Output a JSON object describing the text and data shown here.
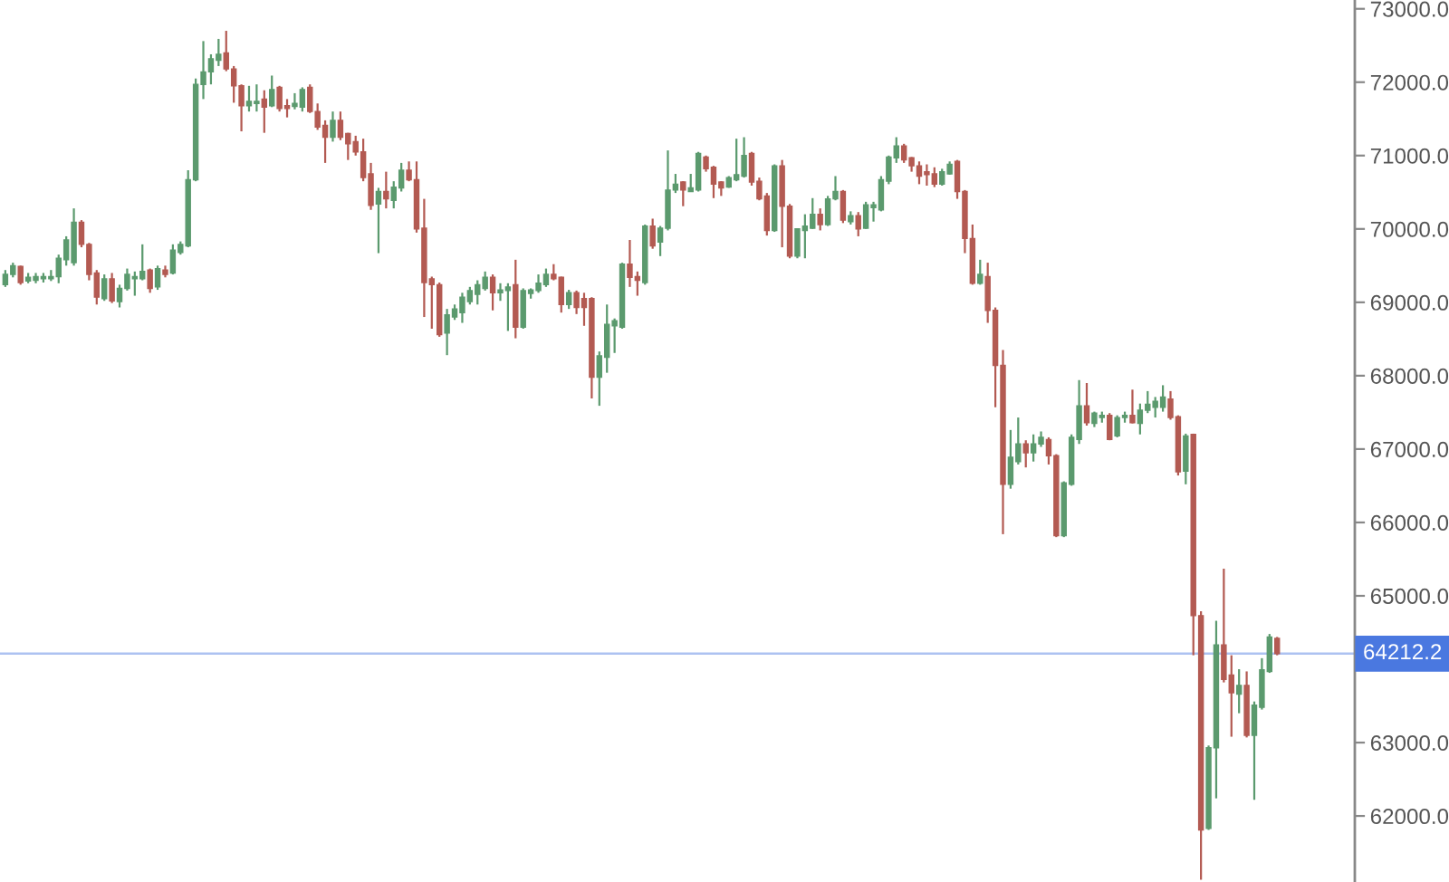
{
  "chart_data": {
    "type": "candlestick",
    "categories": [
      null,
      null,
      null,
      null,
      null,
      null,
      null,
      null,
      null,
      null,
      null,
      null,
      null,
      null,
      null,
      null,
      null,
      null,
      null,
      null,
      null,
      null,
      null,
      null,
      null,
      null,
      null,
      null,
      null,
      null,
      null,
      null,
      null,
      null,
      null,
      null,
      null,
      null,
      null,
      null,
      null,
      null,
      null,
      null,
      null,
      null,
      null,
      null,
      null,
      null,
      null,
      null,
      null,
      null,
      null,
      null,
      null,
      null,
      null,
      null,
      null,
      null,
      null,
      null,
      null,
      null,
      null,
      null,
      null,
      null,
      null,
      null,
      null,
      null,
      null,
      null,
      null,
      null,
      null,
      null,
      null,
      null,
      null,
      null,
      null,
      null,
      null,
      null,
      null,
      null,
      null,
      null,
      null,
      null,
      null,
      null,
      null,
      null,
      null,
      null,
      null,
      null,
      null,
      null,
      null,
      null,
      null,
      null,
      null,
      null,
      null,
      null,
      null,
      null,
      null,
      null,
      null,
      null,
      null,
      null,
      null,
      null,
      null,
      null,
      null,
      null,
      null,
      null,
      null,
      null,
      null,
      null,
      null,
      null,
      null,
      null,
      null,
      null,
      null,
      null,
      null,
      null,
      null,
      null,
      null,
      null,
      null,
      null,
      null,
      null,
      null,
      null,
      null,
      null,
      null,
      null,
      null,
      null,
      null,
      null,
      null,
      null,
      null,
      null,
      null,
      null,
      null,
      null
    ],
    "ohlc": [
      [
        69240,
        69440,
        69210,
        69380
      ],
      [
        69380,
        69540,
        69340,
        69500
      ],
      [
        69490,
        69500,
        69240,
        69270
      ],
      [
        69290,
        69400,
        69260,
        69340
      ],
      [
        69300,
        69400,
        69260,
        69350
      ],
      [
        69320,
        69400,
        69270,
        69350
      ],
      [
        69320,
        69440,
        69290,
        69350
      ],
      [
        69350,
        69650,
        69260,
        69600
      ],
      [
        69580,
        69900,
        69500,
        69850
      ],
      [
        69540,
        70280,
        69500,
        70090
      ],
      [
        70090,
        70120,
        69750,
        69790
      ],
      [
        69790,
        69810,
        69300,
        69380
      ],
      [
        69400,
        69440,
        68970,
        69070
      ],
      [
        69050,
        69380,
        69020,
        69320
      ],
      [
        69320,
        69400,
        68990,
        69020
      ],
      [
        69010,
        69240,
        68930,
        69190
      ],
      [
        69190,
        69460,
        69160,
        69380
      ],
      [
        69320,
        69420,
        69090,
        69350
      ],
      [
        69320,
        69790,
        69300,
        69420
      ],
      [
        69440,
        69460,
        69130,
        69190
      ],
      [
        69210,
        69500,
        69170,
        69460
      ],
      [
        69440,
        69500,
        69340,
        69380
      ],
      [
        69400,
        69790,
        69380,
        69710
      ],
      [
        69680,
        69830,
        69650,
        69790
      ],
      [
        69770,
        70800,
        69750,
        70670
      ],
      [
        70670,
        72050,
        70650,
        71970
      ],
      [
        71970,
        72560,
        71770,
        72140
      ],
      [
        72140,
        72380,
        71970,
        72320
      ],
      [
        72300,
        72590,
        72220,
        72380
      ],
      [
        72400,
        72700,
        72150,
        72180
      ],
      [
        72180,
        72220,
        71720,
        71950
      ],
      [
        71950,
        71970,
        71330,
        71680
      ],
      [
        71680,
        71950,
        71600,
        71740
      ],
      [
        71710,
        71970,
        71600,
        71740
      ],
      [
        71770,
        71890,
        71310,
        71660
      ],
      [
        71680,
        72090,
        71660,
        71900
      ],
      [
        71930,
        71950,
        71600,
        71640
      ],
      [
        71680,
        71770,
        71520,
        71640
      ],
      [
        71670,
        71850,
        71630,
        71710
      ],
      [
        71660,
        71930,
        71600,
        71900
      ],
      [
        71930,
        71970,
        71580,
        71600
      ],
      [
        71600,
        71710,
        71350,
        71390
      ],
      [
        71410,
        71480,
        70900,
        71250
      ],
      [
        71250,
        71600,
        71190,
        71480
      ],
      [
        71480,
        71600,
        71210,
        71250
      ],
      [
        71300,
        71310,
        70940,
        71160
      ],
      [
        71190,
        71270,
        71000,
        71050
      ],
      [
        71050,
        71230,
        70650,
        70700
      ],
      [
        70750,
        70900,
        70260,
        70320
      ],
      [
        70340,
        70560,
        69670,
        70510
      ],
      [
        70510,
        70780,
        70280,
        70410
      ],
      [
        70390,
        70650,
        70280,
        70570
      ],
      [
        70560,
        70900,
        70510,
        70800
      ],
      [
        70800,
        70920,
        70650,
        70670
      ],
      [
        70670,
        70920,
        69950,
        70000
      ],
      [
        70010,
        70410,
        68800,
        69270
      ],
      [
        69320,
        69350,
        68640,
        69240
      ],
      [
        69240,
        69270,
        68530,
        68560
      ],
      [
        68580,
        68910,
        68280,
        68830
      ],
      [
        68800,
        68970,
        68760,
        68910
      ],
      [
        68860,
        69130,
        68720,
        69070
      ],
      [
        69010,
        69210,
        68970,
        69160
      ],
      [
        69110,
        69300,
        68970,
        69240
      ],
      [
        69190,
        69420,
        69160,
        69340
      ],
      [
        69340,
        69380,
        68890,
        69130
      ],
      [
        69130,
        69260,
        69020,
        69170
      ],
      [
        69160,
        69260,
        68610,
        69210
      ],
      [
        69240,
        69580,
        68510,
        68660
      ],
      [
        68660,
        69190,
        68640,
        69160
      ],
      [
        69120,
        69190,
        69050,
        69170
      ],
      [
        69160,
        69380,
        69130,
        69260
      ],
      [
        69240,
        69460,
        69210,
        69380
      ],
      [
        69380,
        69520,
        69300,
        69320
      ],
      [
        69340,
        69350,
        68860,
        68970
      ],
      [
        68970,
        69170,
        68910,
        69130
      ],
      [
        69130,
        69160,
        68840,
        68930
      ],
      [
        69050,
        69130,
        68680,
        68930
      ],
      [
        69050,
        69070,
        67690,
        67980
      ],
      [
        67980,
        68330,
        67590,
        68270
      ],
      [
        68250,
        68970,
        68040,
        68700
      ],
      [
        68680,
        68780,
        68310,
        68750
      ],
      [
        68660,
        69540,
        68640,
        69520
      ],
      [
        69520,
        69850,
        69210,
        69340
      ],
      [
        69350,
        69420,
        69090,
        69300
      ],
      [
        69270,
        70060,
        69240,
        70040
      ],
      [
        70040,
        70140,
        69730,
        69770
      ],
      [
        69820,
        70040,
        69630,
        70010
      ],
      [
        70010,
        71070,
        69980,
        70530
      ],
      [
        70530,
        70750,
        70490,
        70610
      ],
      [
        70640,
        70650,
        70310,
        70530
      ],
      [
        70510,
        70750,
        70510,
        70560
      ],
      [
        70530,
        71050,
        70510,
        71030
      ],
      [
        70980,
        71000,
        70780,
        70820
      ],
      [
        70840,
        70860,
        70420,
        70610
      ],
      [
        70640,
        70650,
        70450,
        70560
      ],
      [
        70570,
        70720,
        70560,
        70700
      ],
      [
        70670,
        71230,
        70650,
        70740
      ],
      [
        70720,
        71250,
        70700,
        71000
      ],
      [
        71030,
        71050,
        70590,
        70640
      ],
      [
        70650,
        70700,
        70390,
        70410
      ],
      [
        70450,
        70490,
        69910,
        69980
      ],
      [
        69980,
        70880,
        69960,
        70860
      ],
      [
        70860,
        70940,
        69750,
        70310
      ],
      [
        70310,
        70340,
        69600,
        69630
      ],
      [
        69630,
        70010,
        69600,
        70000
      ],
      [
        69980,
        70200,
        69600,
        70040
      ],
      [
        70010,
        70420,
        70000,
        70200
      ],
      [
        70200,
        70280,
        69980,
        70060
      ],
      [
        70060,
        70450,
        70040,
        70410
      ],
      [
        70410,
        70720,
        70390,
        70510
      ],
      [
        70510,
        70530,
        70080,
        70120
      ],
      [
        70100,
        70240,
        70060,
        70180
      ],
      [
        70180,
        70230,
        69900,
        70000
      ],
      [
        70010,
        70370,
        70000,
        70330
      ],
      [
        70290,
        70370,
        70100,
        70330
      ],
      [
        70260,
        70720,
        70240,
        70670
      ],
      [
        70650,
        71000,
        70610,
        70980
      ],
      [
        70970,
        71250,
        70900,
        71130
      ],
      [
        71130,
        71160,
        70900,
        70940
      ],
      [
        70970,
        70980,
        70780,
        70860
      ],
      [
        70860,
        70920,
        70610,
        70720
      ],
      [
        70780,
        70880,
        70590,
        70740
      ],
      [
        70750,
        70840,
        70570,
        70610
      ],
      [
        70610,
        70820,
        70590,
        70780
      ],
      [
        70750,
        70920,
        70740,
        70880
      ],
      [
        70920,
        70940,
        70410,
        70510
      ],
      [
        70510,
        70530,
        69670,
        69870
      ],
      [
        69870,
        70060,
        69240,
        69260
      ],
      [
        69260,
        69580,
        69240,
        69380
      ],
      [
        69350,
        69540,
        68720,
        68890
      ],
      [
        68890,
        68930,
        67570,
        68140
      ],
      [
        68140,
        68350,
        65840,
        66520
      ],
      [
        66520,
        67260,
        66460,
        66890
      ],
      [
        66830,
        67430,
        66790,
        67070
      ],
      [
        67070,
        67120,
        66750,
        66950
      ],
      [
        66950,
        67200,
        66830,
        67070
      ],
      [
        67070,
        67240,
        67030,
        67160
      ],
      [
        67130,
        67160,
        66790,
        66910
      ],
      [
        66910,
        66930,
        65800,
        65820
      ],
      [
        65820,
        66560,
        65800,
        66540
      ],
      [
        66520,
        67200,
        66500,
        67160
      ],
      [
        67130,
        67940,
        67070,
        67590
      ],
      [
        67590,
        67900,
        67320,
        67360
      ],
      [
        67350,
        67510,
        67300,
        67490
      ],
      [
        67430,
        67510,
        67360,
        67460
      ],
      [
        67460,
        67490,
        67120,
        67130
      ],
      [
        67180,
        67460,
        67160,
        67430
      ],
      [
        67430,
        67510,
        67360,
        67460
      ],
      [
        67460,
        67810,
        67350,
        67360
      ],
      [
        67350,
        67620,
        67200,
        67530
      ],
      [
        67530,
        67790,
        67490,
        67610
      ],
      [
        67570,
        67710,
        67430,
        67650
      ],
      [
        67570,
        67870,
        67510,
        67710
      ],
      [
        67680,
        67790,
        67400,
        67430
      ],
      [
        67440,
        67460,
        66640,
        66690
      ],
      [
        66700,
        67210,
        66520,
        67180
      ],
      [
        67200,
        67210,
        64190,
        64730
      ],
      [
        64730,
        64790,
        61130,
        61810
      ],
      [
        61830,
        62960,
        61810,
        62930
      ],
      [
        62930,
        64660,
        62240,
        64330
      ],
      [
        64330,
        65370,
        63820,
        63860
      ],
      [
        63920,
        64190,
        63080,
        63680
      ],
      [
        63660,
        64000,
        63400,
        63780
      ],
      [
        63780,
        63970,
        63070,
        63100
      ],
      [
        63100,
        63560,
        62220,
        63510
      ],
      [
        63480,
        64150,
        63450,
        63990
      ],
      [
        63970,
        64480,
        63950,
        64440
      ],
      [
        64420,
        64440,
        64190,
        64212.2
      ]
    ],
    "colors": [
      "#5b9a6e",
      "#5b9a6e",
      "#b35a52",
      "#5b9a6e",
      "#5b9a6e",
      "#5b9a6e",
      "#5b9a6e",
      "#5b9a6e",
      "#5b9a6e",
      "#5b9a6e",
      "#b35a52",
      "#b35a52",
      "#b35a52",
      "#5b9a6e",
      "#b35a52",
      "#5b9a6e",
      "#5b9a6e",
      "#5b9a6e",
      "#5b9a6e",
      "#b35a52",
      "#5b9a6e",
      "#b35a52",
      "#5b9a6e",
      "#5b9a6e",
      "#5b9a6e",
      "#5b9a6e",
      "#5b9a6e",
      "#5b9a6e",
      "#5b9a6e",
      "#b35a52",
      "#b35a52",
      "#b35a52",
      "#5b9a6e",
      "#5b9a6e",
      "#b35a52",
      "#5b9a6e",
      "#b35a52",
      "#b35a52",
      "#5b9a6e",
      "#5b9a6e",
      "#b35a52",
      "#b35a52",
      "#b35a52",
      "#5b9a6e",
      "#b35a52",
      "#b35a52",
      "#b35a52",
      "#b35a52",
      "#b35a52",
      "#5b9a6e",
      "#b35a52",
      "#5b9a6e",
      "#5b9a6e",
      "#b35a52",
      "#b35a52",
      "#b35a52",
      "#b35a52",
      "#b35a52",
      "#5b9a6e",
      "#5b9a6e",
      "#5b9a6e",
      "#5b9a6e",
      "#5b9a6e",
      "#5b9a6e",
      "#b35a52",
      "#5b9a6e",
      "#5b9a6e",
      "#b35a52",
      "#5b9a6e",
      "#5b9a6e",
      "#5b9a6e",
      "#5b9a6e",
      "#b35a52",
      "#b35a52",
      "#5b9a6e",
      "#b35a52",
      "#b35a52",
      "#b35a52",
      "#5b9a6e",
      "#5b9a6e",
      "#5b9a6e",
      "#5b9a6e",
      "#b35a52",
      "#b35a52",
      "#5b9a6e",
      "#b35a52",
      "#5b9a6e",
      "#5b9a6e",
      "#5b9a6e",
      "#b35a52",
      "#5b9a6e",
      "#5b9a6e",
      "#b35a52",
      "#b35a52",
      "#b35a52",
      "#5b9a6e",
      "#5b9a6e",
      "#5b9a6e",
      "#b35a52",
      "#b35a52",
      "#b35a52",
      "#5b9a6e",
      "#b35a52",
      "#b35a52",
      "#5b9a6e",
      "#5b9a6e",
      "#5b9a6e",
      "#b35a52",
      "#5b9a6e",
      "#5b9a6e",
      "#b35a52",
      "#5b9a6e",
      "#b35a52",
      "#5b9a6e",
      "#5b9a6e",
      "#5b9a6e",
      "#5b9a6e",
      "#5b9a6e",
      "#b35a52",
      "#b35a52",
      "#b35a52",
      "#b35a52",
      "#b35a52",
      "#5b9a6e",
      "#5b9a6e",
      "#b35a52",
      "#b35a52",
      "#b35a52",
      "#5b9a6e",
      "#b35a52",
      "#b35a52",
      "#b35a52",
      "#5b9a6e",
      "#5b9a6e",
      "#b35a52",
      "#5b9a6e",
      "#5b9a6e",
      "#b35a52",
      "#b35a52",
      "#5b9a6e",
      "#5b9a6e",
      "#5b9a6e",
      "#b35a52",
      "#5b9a6e",
      "#5b9a6e",
      "#b35a52",
      "#5b9a6e",
      "#5b9a6e",
      "#b35a52",
      "#5b9a6e",
      "#5b9a6e",
      "#5b9a6e",
      "#5b9a6e",
      "#b35a52",
      "#b35a52",
      "#5b9a6e",
      "#b35a52",
      "#b35a52",
      "#5b9a6e",
      "#5b9a6e",
      "#b35a52",
      "#b35a52",
      "#5b9a6e",
      "#b35a52",
      "#5b9a6e",
      "#5b9a6e",
      "#5b9a6e",
      "#b35a52"
    ],
    "ylim": [
      61100,
      73120
    ],
    "yticks": [
      {
        "value": 62000,
        "label": "62000.0"
      },
      {
        "value": 63000,
        "label": "63000.0"
      },
      {
        "value": 65000,
        "label": "65000.0"
      },
      {
        "value": 66000,
        "label": "66000.0"
      },
      {
        "value": 67000,
        "label": "67000.0"
      },
      {
        "value": 68000,
        "label": "68000.0"
      },
      {
        "value": 69000,
        "label": "69000.0"
      },
      {
        "value": 70000,
        "label": "70000.0"
      },
      {
        "value": 71000,
        "label": "71000.0"
      },
      {
        "value": 72000,
        "label": "72000.0"
      },
      {
        "value": 73000,
        "label": "73000.0"
      }
    ],
    "ref_lines": [
      {
        "axis": "y",
        "value": 64212.2,
        "label": "64212.2",
        "color": "#4a78e0"
      }
    ],
    "tick_labels": "y",
    "grid": false,
    "legend": false
  }
}
